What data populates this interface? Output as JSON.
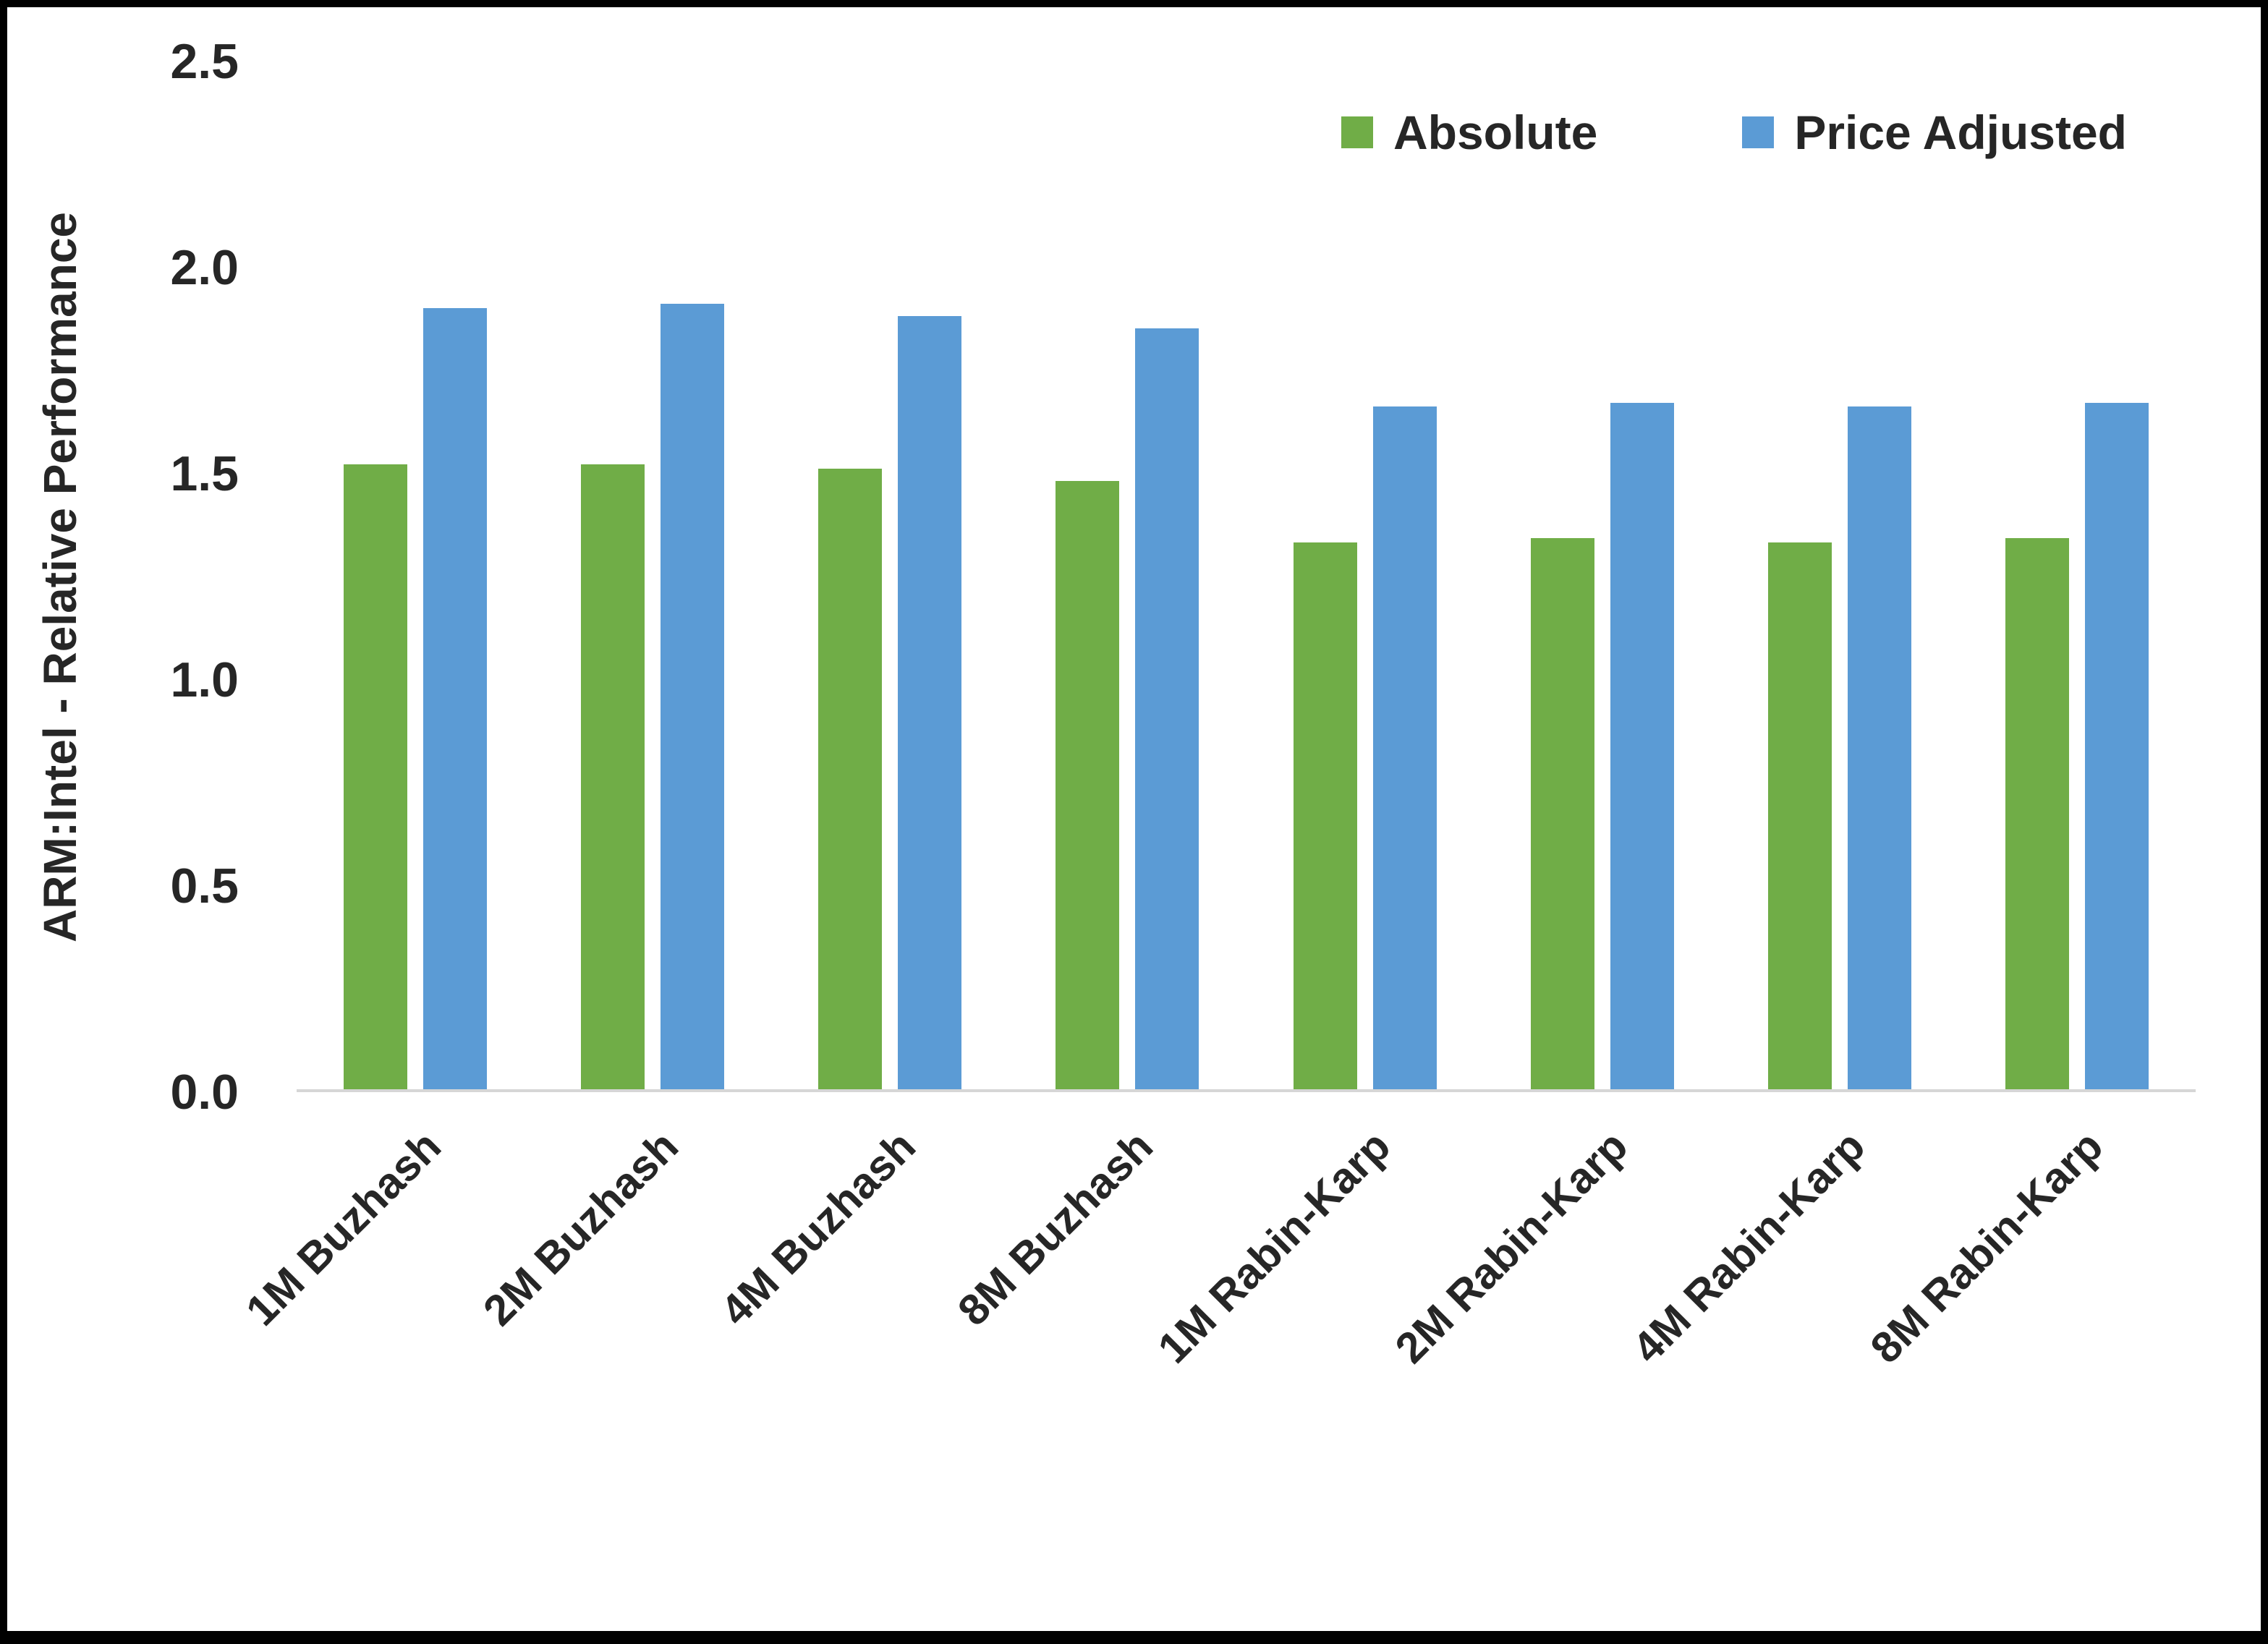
{
  "chart_data": {
    "type": "bar",
    "title": "",
    "xlabel": "",
    "ylabel": "ARM:Intel - Relative Performance",
    "ylim": [
      0,
      2.5
    ],
    "yticks": [
      "0.0",
      "0.5",
      "1.0",
      "1.5",
      "2.0",
      "2.5"
    ],
    "grid": false,
    "legend_position": "top-right",
    "categories": [
      "1M Buzhash",
      "2M Buzhash",
      "4M Buzhash",
      "8M Buzhash",
      "1M Rabin-Karp",
      "2M Rabin-Karp",
      "4M Rabin-Karp",
      "8M Rabin-Karp"
    ],
    "series": [
      {
        "name": "Absolute",
        "color": "#70AD47",
        "values": [
          1.52,
          1.52,
          1.51,
          1.48,
          1.33,
          1.34,
          1.33,
          1.34
        ]
      },
      {
        "name": "Price Adjusted",
        "color": "#5B9BD5",
        "values": [
          1.9,
          1.91,
          1.88,
          1.85,
          1.66,
          1.67,
          1.66,
          1.67
        ]
      }
    ],
    "colors": {
      "axis_text": "#262626",
      "baseline": "#d6d6d6",
      "background": "#ffffff",
      "frame_border": "#000000"
    }
  }
}
